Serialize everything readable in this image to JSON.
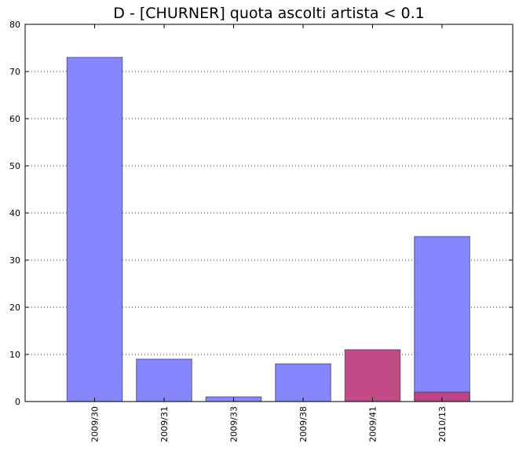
{
  "chart_data": {
    "type": "bar",
    "title": "D - [CHURNER] quota ascolti artista < 0.1",
    "xlabel": "",
    "ylabel": "",
    "categories": [
      "2009/30",
      "2009/31",
      "2009/33",
      "2009/38",
      "2009/41",
      "2010/13"
    ],
    "series": [
      {
        "values": [
          73,
          9,
          1,
          8,
          0,
          35
        ],
        "color": "#8080ff"
      },
      {
        "values": [
          0,
          0,
          0,
          0,
          11,
          2
        ],
        "color": "#bf4080"
      }
    ],
    "yticks": [
      0,
      10,
      20,
      30,
      40,
      50,
      60,
      70,
      80
    ],
    "ylim": [
      0,
      80
    ],
    "grid": "horizontal dotted",
    "legend": "none"
  }
}
